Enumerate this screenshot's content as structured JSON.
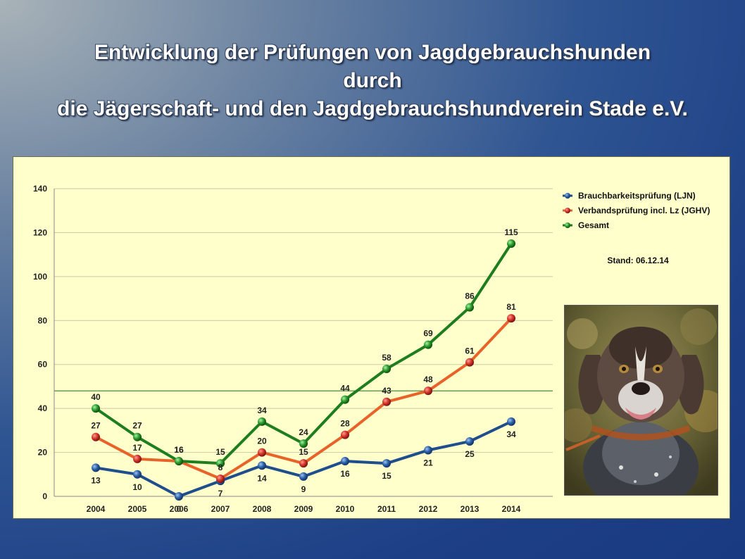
{
  "title": {
    "line1": "Entwicklung der Prüfungen von Jagdgebrauchshunden",
    "line2": "durch",
    "line3": "die Jägerschaft- und den Jagdgebrauchshundverein Stade e.V."
  },
  "stand": "Stand: 06.12.14",
  "colors": {
    "ljn": "#1f4e8c",
    "jghv": "#e8632a",
    "gesamt": "#1e7d1e",
    "panel": "#ffffcc"
  },
  "chart_data": {
    "type": "line",
    "title": "Entwicklung der Prüfungen von Jagdgebrauchshunden",
    "xlabel": "",
    "ylabel": "",
    "ylim": [
      0,
      140
    ],
    "yticks": [
      0,
      20,
      40,
      60,
      80,
      100,
      120,
      140
    ],
    "categories": [
      "2004",
      "2005",
      "2006",
      "2007",
      "2008",
      "2009",
      "2010",
      "2011",
      "2012",
      "2013",
      "2014"
    ],
    "reference_line": 48,
    "legend_position": "top-right",
    "series": [
      {
        "name": "Brauchbarkeitsprüfung (LJN)",
        "values": [
          13,
          10,
          0,
          7,
          14,
          9,
          16,
          15,
          21,
          25,
          34
        ]
      },
      {
        "name": "Verbandsprüfung incl. Lz (JGHV)",
        "values": [
          27,
          17,
          16,
          8,
          20,
          15,
          28,
          43,
          48,
          61,
          81
        ]
      },
      {
        "name": "Gesamt",
        "values": [
          40,
          27,
          16,
          15,
          34,
          24,
          44,
          58,
          69,
          86,
          115
        ]
      }
    ]
  }
}
